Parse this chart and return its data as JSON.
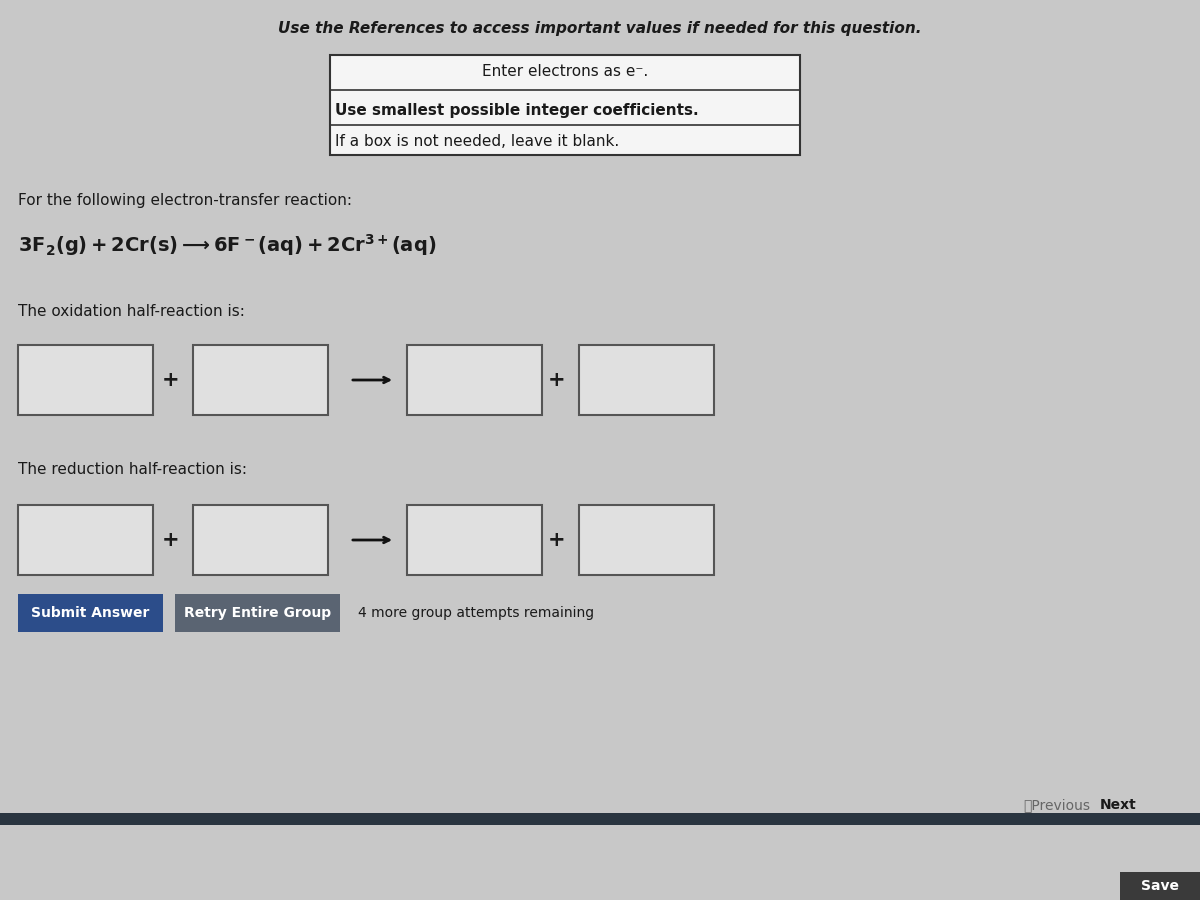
{
  "bg_color": "#c8c8c8",
  "title_text": "Use the References to access important values if needed for this question.",
  "instruction_line1": "Enter electrons as e⁻.",
  "instruction_line2": "Use smallest possible integer coefficients.",
  "instruction_line3": "If a box is not needed, leave it blank.",
  "reaction_intro": "For the following electron-transfer reaction:",
  "oxidation_label": "The oxidation half-reaction is:",
  "reduction_label": "The reduction half-reaction is:",
  "submit_btn_text": "Submit Answer",
  "submit_btn_color": "#2c4d8a",
  "retry_btn_text": "Retry Entire Group",
  "retry_btn_color": "#5a6472",
  "attempts_text": "4 more group attempts remaining",
  "previous_text": "〈Previous",
  "next_text": "Next",
  "save_text": "Save",
  "box_facecolor": "#e8e8e8",
  "box_border": "#555555",
  "text_color": "#1a1a1a",
  "title_fontsize": 11,
  "label_fontsize": 11,
  "instruction_fontsize": 11,
  "bottom_bar_color": "#2a3540",
  "save_bg": "#3a3a3a"
}
